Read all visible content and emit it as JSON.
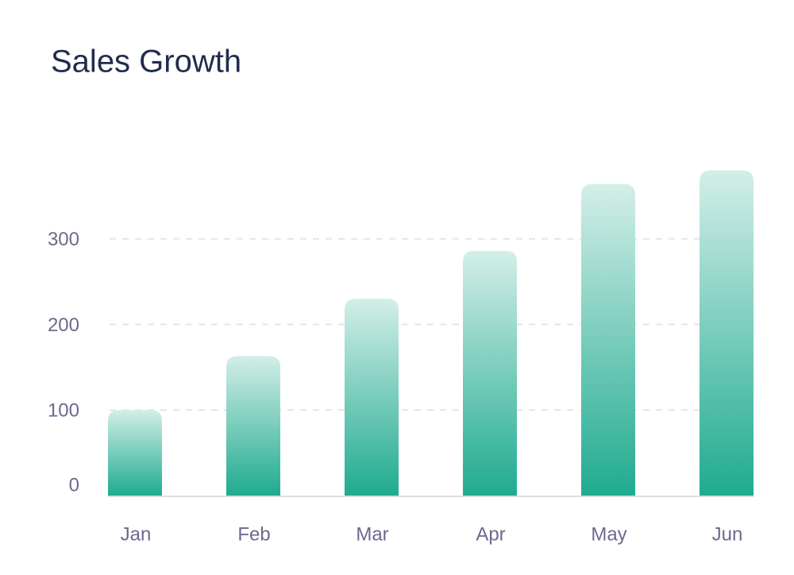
{
  "chart_data": {
    "type": "bar",
    "title": "Sales Growth",
    "categories": [
      "Jan",
      "Feb",
      "Mar",
      "Apr",
      "May",
      "Jun"
    ],
    "values": [
      100,
      163,
      230,
      286,
      364,
      380
    ],
    "color": "#1fab8f",
    "ylim": [
      0,
      400
    ],
    "yticks": [
      0,
      100,
      200,
      300
    ],
    "grid": true
  }
}
